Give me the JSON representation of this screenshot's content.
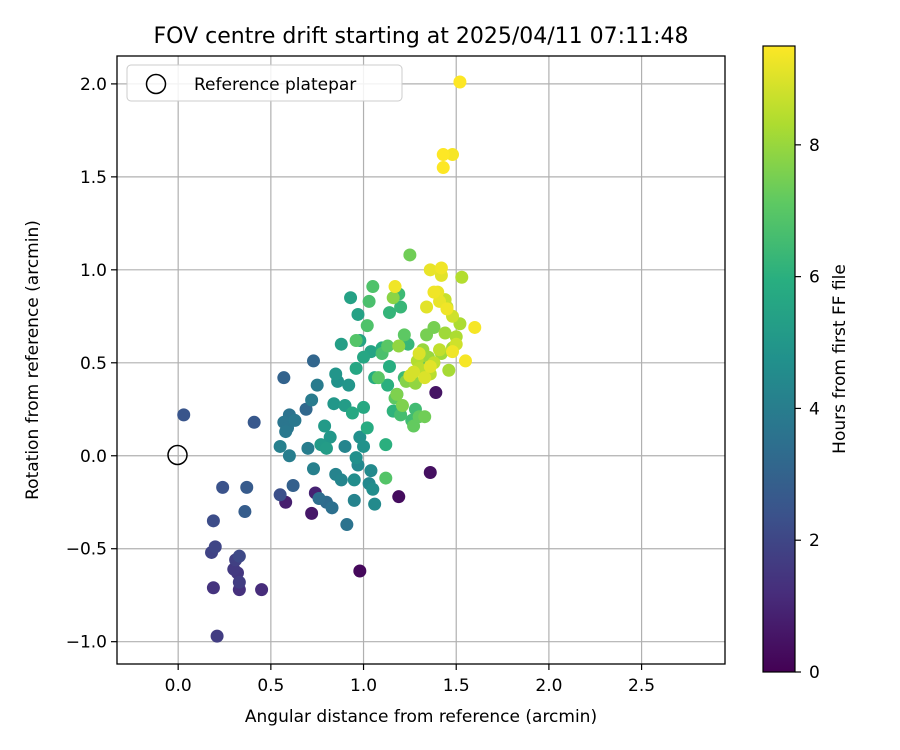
{
  "chart_data": {
    "type": "scatter",
    "title": "FOV centre drift starting at 2025/04/11 07:11:48",
    "xlabel": "Angular distance from reference (arcmin)",
    "ylabel": "Rotation from reference (arcmin)",
    "xlim": [
      -0.33,
      2.95
    ],
    "ylim": [
      -1.12,
      2.15
    ],
    "x_ticks": [
      "0.0",
      "0.5",
      "1.0",
      "1.5",
      "2.0",
      "2.5"
    ],
    "y_ticks": [
      "−1.0",
      "−0.5",
      "0.0",
      "0.5",
      "1.0",
      "1.5",
      "2.0"
    ],
    "grid": true,
    "legend": {
      "position": "top-left",
      "entries": [
        "Reference platepar"
      ]
    },
    "reference_point": {
      "name": "Reference platepar",
      "x": 0.0,
      "y": 0.0
    },
    "colorbar": {
      "label": "Hours from first FF file",
      "ticks": [
        "0",
        "2",
        "4",
        "6",
        "8"
      ],
      "range": [
        0,
        9.5
      ],
      "colormap": "viridis"
    },
    "series": [
      {
        "values": [
          [
            0.98,
            -0.62,
            0.2
          ],
          [
            1.19,
            -0.22,
            0.3
          ],
          [
            1.36,
            -0.09,
            0.4
          ],
          [
            1.39,
            0.34,
            0.5
          ],
          [
            0.72,
            -0.31,
            0.6
          ],
          [
            0.58,
            -0.25,
            0.8
          ],
          [
            0.74,
            -0.2,
            0.9
          ],
          [
            0.45,
            -0.72,
            1.2
          ],
          [
            0.33,
            -0.72,
            1.3
          ],
          [
            0.19,
            -0.71,
            1.4
          ],
          [
            0.32,
            -0.63,
            1.5
          ],
          [
            0.3,
            -0.61,
            1.6
          ],
          [
            0.33,
            -0.68,
            1.7
          ],
          [
            0.21,
            -0.97,
            1.7
          ],
          [
            0.31,
            -0.56,
            1.8
          ],
          [
            0.18,
            -0.52,
            1.9
          ],
          [
            0.2,
            -0.49,
            2.0
          ],
          [
            0.33,
            -0.54,
            2.1
          ],
          [
            0.19,
            -0.35,
            2.2
          ],
          [
            0.55,
            -0.21,
            2.3
          ],
          [
            0.24,
            -0.17,
            2.4
          ],
          [
            0.03,
            0.22,
            2.5
          ],
          [
            0.41,
            0.18,
            2.6
          ],
          [
            0.37,
            -0.17,
            2.7
          ],
          [
            0.36,
            -0.3,
            2.8
          ],
          [
            0.62,
            -0.16,
            2.9
          ],
          [
            0.57,
            0.42,
            3.0
          ],
          [
            0.73,
            0.51,
            3.1
          ],
          [
            0.69,
            0.25,
            3.2
          ],
          [
            0.8,
            -0.25,
            3.3
          ],
          [
            0.76,
            -0.23,
            3.4
          ],
          [
            0.83,
            -0.28,
            3.5
          ],
          [
            0.91,
            -0.37,
            3.6
          ],
          [
            0.6,
            0.22,
            3.6
          ],
          [
            0.57,
            0.18,
            3.7
          ],
          [
            0.59,
            0.15,
            3.7
          ],
          [
            0.58,
            0.13,
            3.8
          ],
          [
            0.63,
            0.19,
            3.8
          ],
          [
            0.72,
            0.3,
            3.9
          ],
          [
            0.75,
            0.38,
            3.9
          ],
          [
            0.7,
            0.04,
            4.0
          ],
          [
            0.6,
            0.0,
            4.0
          ],
          [
            0.55,
            0.05,
            4.1
          ],
          [
            0.73,
            -0.07,
            4.1
          ],
          [
            0.85,
            -0.1,
            4.2
          ],
          [
            0.95,
            -0.24,
            4.2
          ],
          [
            0.88,
            -0.13,
            4.3
          ],
          [
            0.9,
            0.05,
            4.3
          ],
          [
            0.97,
            -0.05,
            4.4
          ],
          [
            1.03,
            -0.15,
            4.4
          ],
          [
            1.04,
            -0.08,
            4.5
          ],
          [
            1.06,
            -0.26,
            4.5
          ],
          [
            1.05,
            -0.18,
            4.6
          ],
          [
            0.95,
            -0.13,
            4.6
          ],
          [
            0.96,
            -0.01,
            4.7
          ],
          [
            0.98,
            0.1,
            4.7
          ],
          [
            1.0,
            0.05,
            4.8
          ],
          [
            0.86,
            0.4,
            4.8
          ],
          [
            0.85,
            0.44,
            4.9
          ],
          [
            0.92,
            0.38,
            4.9
          ],
          [
            0.82,
            0.1,
            5.0
          ],
          [
            0.84,
            0.28,
            5.0
          ],
          [
            0.79,
            0.16,
            5.1
          ],
          [
            0.77,
            0.06,
            5.1
          ],
          [
            0.8,
            0.04,
            5.2
          ],
          [
            0.9,
            0.27,
            5.2
          ],
          [
            0.88,
            0.6,
            5.3
          ],
          [
            0.93,
            0.85,
            5.4
          ],
          [
            0.97,
            0.76,
            5.4
          ],
          [
            0.98,
            0.62,
            5.5
          ],
          [
            1.04,
            0.56,
            5.5
          ],
          [
            1.0,
            0.53,
            5.6
          ],
          [
            0.96,
            0.47,
            5.6
          ],
          [
            0.94,
            0.23,
            5.7
          ],
          [
            1.0,
            0.26,
            5.7
          ],
          [
            1.02,
            0.15,
            5.8
          ],
          [
            1.06,
            0.42,
            5.8
          ],
          [
            1.1,
            0.58,
            5.9
          ],
          [
            1.14,
            0.48,
            5.9
          ],
          [
            1.13,
            0.38,
            6.0
          ],
          [
            1.12,
            0.06,
            6.0
          ],
          [
            1.16,
            0.24,
            6.1
          ],
          [
            1.18,
            0.33,
            6.1
          ],
          [
            1.14,
            0.77,
            6.2
          ],
          [
            1.2,
            0.8,
            6.3
          ],
          [
            1.24,
            0.6,
            6.3
          ],
          [
            1.19,
            0.87,
            6.4
          ],
          [
            1.22,
            0.42,
            6.4
          ],
          [
            1.26,
            0.19,
            6.5
          ],
          [
            1.28,
            0.25,
            6.5
          ],
          [
            1.31,
            0.48,
            6.6
          ],
          [
            1.2,
            0.22,
            6.6
          ],
          [
            1.1,
            0.55,
            6.7
          ],
          [
            1.03,
            0.83,
            6.7
          ],
          [
            1.05,
            0.91,
            6.8
          ],
          [
            1.02,
            0.7,
            6.8
          ],
          [
            1.12,
            -0.12,
            6.9
          ],
          [
            0.96,
            0.62,
            6.9
          ],
          [
            1.08,
            0.42,
            7.0
          ],
          [
            1.13,
            0.59,
            7.0
          ],
          [
            1.17,
            0.31,
            7.1
          ],
          [
            1.22,
            0.65,
            7.1
          ],
          [
            1.27,
            0.16,
            7.2
          ],
          [
            1.3,
            0.21,
            7.2
          ],
          [
            1.25,
            1.08,
            7.4
          ],
          [
            1.33,
            0.21,
            7.4
          ],
          [
            1.38,
            0.69,
            7.5
          ],
          [
            1.34,
            0.65,
            7.5
          ],
          [
            1.18,
            0.33,
            7.6
          ],
          [
            1.21,
            0.27,
            7.6
          ],
          [
            1.23,
            0.4,
            7.7
          ],
          [
            1.26,
            0.43,
            7.7
          ],
          [
            1.16,
            0.85,
            7.8
          ],
          [
            1.19,
            0.59,
            7.9
          ],
          [
            1.28,
            0.39,
            7.9
          ],
          [
            1.32,
            0.57,
            8.0
          ],
          [
            1.35,
            0.53,
            8.0
          ],
          [
            1.42,
            0.55,
            8.1
          ],
          [
            1.44,
            0.66,
            8.1
          ],
          [
            1.46,
            0.46,
            8.2
          ],
          [
            1.48,
            0.58,
            8.2
          ],
          [
            1.5,
            0.64,
            8.3
          ],
          [
            1.52,
            0.71,
            8.3
          ],
          [
            1.53,
            0.96,
            8.4
          ],
          [
            1.29,
            0.51,
            8.4
          ],
          [
            1.3,
            0.47,
            8.5
          ],
          [
            1.36,
            0.44,
            8.5
          ],
          [
            1.38,
            0.5,
            8.6
          ],
          [
            1.41,
            0.57,
            8.6
          ],
          [
            1.44,
            0.84,
            8.7
          ],
          [
            1.45,
            0.8,
            8.7
          ],
          [
            1.48,
            0.75,
            8.8
          ],
          [
            1.5,
            0.6,
            8.8
          ],
          [
            1.25,
            0.43,
            8.9
          ],
          [
            1.27,
            0.45,
            8.9
          ],
          [
            1.3,
            0.55,
            9.0
          ],
          [
            1.33,
            0.42,
            9.0
          ],
          [
            1.36,
            0.48,
            9.1
          ],
          [
            1.34,
            0.8,
            9.1
          ],
          [
            1.36,
            1.0,
            9.2
          ],
          [
            1.41,
            0.83,
            9.2
          ],
          [
            1.42,
            1.01,
            9.3
          ],
          [
            1.45,
            0.79,
            9.3
          ],
          [
            1.48,
            0.56,
            9.3
          ],
          [
            1.55,
            0.51,
            9.4
          ],
          [
            1.6,
            0.69,
            9.4
          ],
          [
            1.48,
            1.62,
            9.4
          ],
          [
            1.43,
            1.62,
            9.5
          ],
          [
            1.43,
            1.55,
            9.5
          ],
          [
            1.52,
            2.01,
            9.5
          ],
          [
            1.38,
            0.88,
            9.3
          ],
          [
            1.4,
            0.88,
            9.2
          ],
          [
            1.17,
            0.91,
            9.3
          ],
          [
            1.42,
            0.97,
            9.1
          ]
        ]
      }
    ]
  }
}
